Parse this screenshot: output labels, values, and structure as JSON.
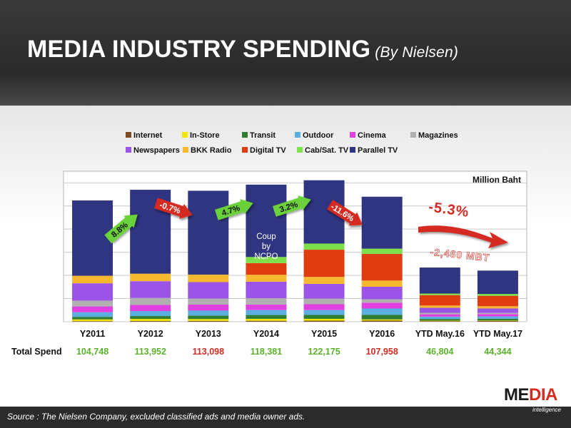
{
  "header": {
    "title": "MEDIA INDUSTRY SPENDING",
    "subtitle": "(By Nielsen)"
  },
  "footer": {
    "source": "Source :  The Nielsen Company, excluded  classified  ads  and media owner ads."
  },
  "logo": {
    "word_a": "ME",
    "word_b": "DIA",
    "tag": "intelligence"
  },
  "colors": {
    "Internet": "#7b4a1e",
    "In-Store": "#f2e600",
    "Transit": "#2e7d32",
    "Outdoor": "#5aaee0",
    "Cinema": "#e040e0",
    "Magazines": "#b0b0b0",
    "Newspapers": "#9a55e6",
    "BBK Radio": "#f5b82e",
    "Digital TV": "#e03c12",
    "Cab/Sat. TV": "#7ee04a",
    "Parallel  TV": "#2f3580",
    "positive": "#5ab12a",
    "negative": "#d42a22"
  },
  "chart_data": {
    "type": "bar",
    "stacked": true,
    "unit_label": "Million Baht",
    "legend": [
      "Internet",
      "In-Store",
      "Transit",
      "Outdoor",
      "Cinema",
      "Magazines",
      "Newspapers",
      "BKK Radio",
      "Digital TV",
      "Cab/Sat. TV",
      "Parallel  TV"
    ],
    "categories": [
      "Y2011",
      "Y2012",
      "Y2013",
      "Y2014",
      "Y2015",
      "Y2016",
      "YTD May.16",
      "YTD May.17"
    ],
    "ylim": [
      0,
      130000
    ],
    "grid": true,
    "series": [
      {
        "name": "Internet",
        "values": [
          500,
          600,
          700,
          800,
          900,
          1000,
          500,
          600
        ]
      },
      {
        "name": "In-Store",
        "values": [
          1500,
          1800,
          1600,
          1700,
          1600,
          1000,
          400,
          400
        ]
      },
      {
        "name": "Transit",
        "values": [
          2200,
          2500,
          3000,
          3300,
          3400,
          4000,
          1500,
          1600
        ]
      },
      {
        "name": "Outdoor",
        "values": [
          4000,
          4300,
          4300,
          4300,
          4200,
          5400,
          2000,
          2000
        ]
      },
      {
        "name": "Cinema",
        "values": [
          5000,
          5300,
          5200,
          4800,
          5000,
          5000,
          2000,
          2000
        ]
      },
      {
        "name": "Magazines",
        "values": [
          5000,
          6000,
          5200,
          5400,
          4800,
          3000,
          1300,
          1000
        ]
      },
      {
        "name": "Newspapers",
        "values": [
          15000,
          14500,
          14200,
          14300,
          12800,
          10800,
          4300,
          3800
        ]
      },
      {
        "name": "BKK Radio",
        "values": [
          6500,
          6500,
          6500,
          6000,
          6000,
          5400,
          2000,
          2000
        ]
      },
      {
        "name": "Digital TV",
        "values": [
          0,
          0,
          0,
          10000,
          23500,
          23000,
          9000,
          9000
        ]
      },
      {
        "name": "Cab/Sat. TV",
        "values": [
          0,
          0,
          0,
          5300,
          5300,
          4500,
          1300,
          1600
        ]
      },
      {
        "name": "Parallel  TV",
        "values": [
          65048,
          72452,
          72398,
          62481,
          54675,
          44858,
          22504,
          20144
        ]
      }
    ],
    "totals_label": "Total  Spend",
    "totals": [
      "104,748",
      "113,952",
      "113,098",
      "118,381",
      "122,175",
      "107,958",
      "46,804",
      "44,344"
    ],
    "totals_direction": [
      "up",
      "up",
      "down",
      "up",
      "up",
      "down",
      "up",
      "up"
    ],
    "growth_annotations": [
      {
        "text": "8.8%",
        "between": [
          "Y2011",
          "Y2012"
        ],
        "direction": "up"
      },
      {
        "text": "-0.7%",
        "between": [
          "Y2012",
          "Y2013"
        ],
        "direction": "down"
      },
      {
        "text": "4.7%",
        "between": [
          "Y2013",
          "Y2014"
        ],
        "direction": "up"
      },
      {
        "text": "3.2%",
        "between": [
          "Y2014",
          "Y2015"
        ],
        "direction": "up"
      },
      {
        "text": "-11.6%",
        "between": [
          "Y2015",
          "Y2016"
        ],
        "direction": "down"
      }
    ],
    "bar_note": {
      "category": "Y2014",
      "lines": [
        "Coup",
        "by",
        "NCPO"
      ]
    },
    "ytd_change": {
      "percent": "-5.3%",
      "amount": "-2,460 MBT"
    }
  }
}
